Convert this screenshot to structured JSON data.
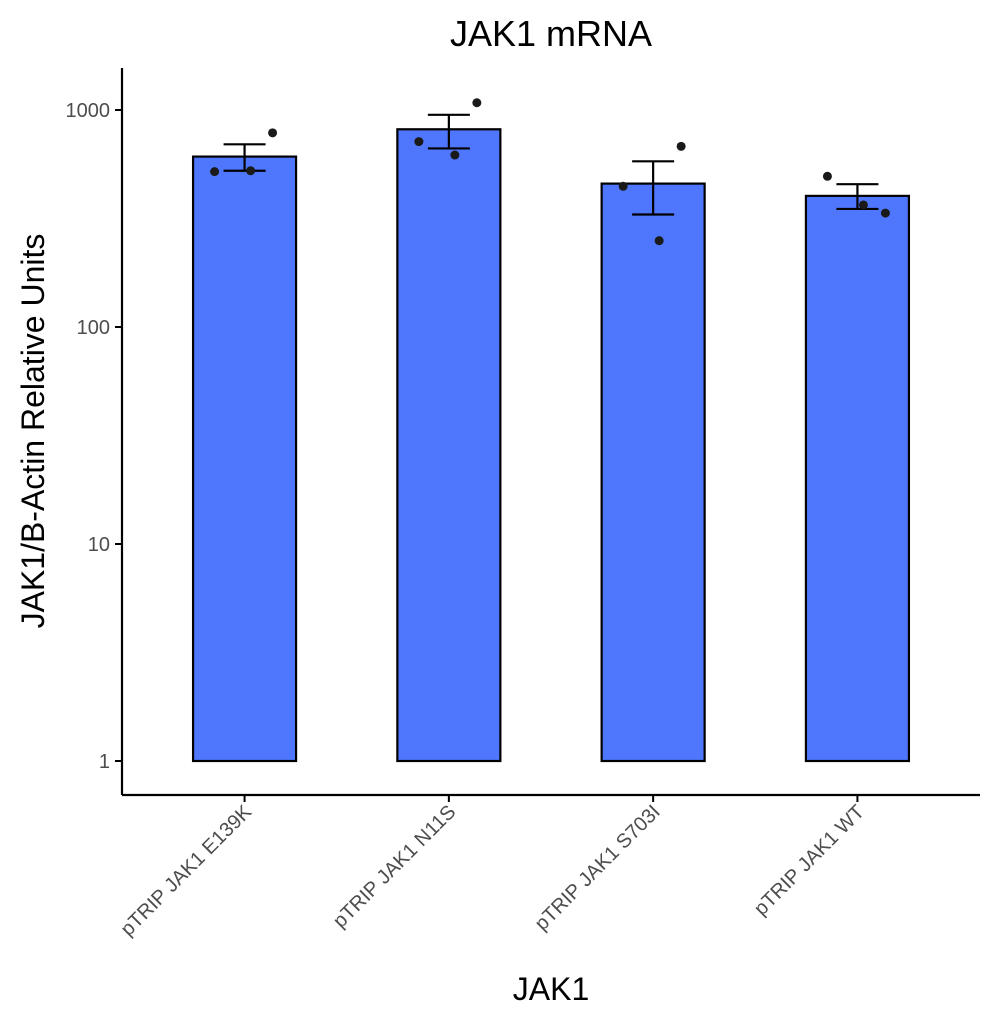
{
  "chart_data": {
    "type": "bar",
    "title": "JAK1 mRNA",
    "xlabel": "JAK1",
    "ylabel": "JAK1/B-Actin Relative Units",
    "y_scale": "log10",
    "ylim": [
      0.6,
      1550
    ],
    "y_ticks": [
      1,
      10,
      100,
      1000
    ],
    "y_tick_labels": [
      "1",
      "10",
      "100",
      "1000"
    ],
    "bar_color": "#4f77fe",
    "categories": [
      "pTRIP JAK1 E139K",
      "pTRIP JAK1 N11S",
      "pTRIP JAK1 S703I",
      "pTRIP JAK1 WT"
    ],
    "values": [
      610,
      815,
      458,
      402
    ],
    "error_low": [
      525,
      665,
      330,
      350
    ],
    "error_high": [
      695,
      950,
      580,
      455
    ],
    "points": [
      [
        520,
        525,
        785
      ],
      [
        715,
        620,
        1080
      ],
      [
        445,
        250,
        680
      ],
      [
        495,
        365,
        335
      ]
    ],
    "grid": false,
    "legend": "none"
  }
}
